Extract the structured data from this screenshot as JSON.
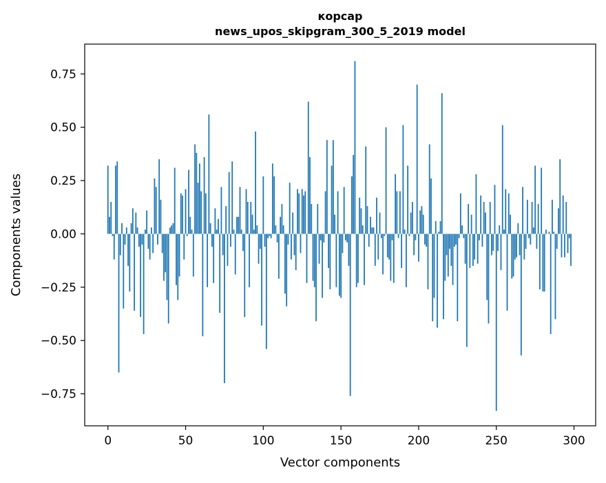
{
  "chart_data": {
    "type": "bar",
    "title_line1": "корсар",
    "title_line2": "news_upos_skipgram_300_5_2019 model",
    "xlabel": "Vector components",
    "ylabel": "Components values",
    "xlim": [
      -14.95,
      313.95
    ],
    "ylim": [
      -0.9,
      0.89
    ],
    "xticks": [
      0,
      50,
      100,
      150,
      200,
      250,
      300
    ],
    "xtick_labels": [
      "0",
      "50",
      "100",
      "150",
      "200",
      "250",
      "300"
    ],
    "yticks": [
      0.75,
      0.5,
      0.25,
      0.0,
      -0.25,
      -0.5,
      -0.75
    ],
    "ytick_labels": [
      "0.75",
      "0.50",
      "0.25",
      "0.00",
      "−0.25",
      "−0.50",
      "−0.75"
    ],
    "bar_color": "#1f77b4",
    "values": [
      0.32,
      0.08,
      0.15,
      -0.01,
      -0.12,
      0.32,
      0.34,
      -0.65,
      -0.1,
      0.05,
      -0.35,
      -0.05,
      0.03,
      -0.15,
      -0.27,
      0.05,
      0.12,
      -0.36,
      0.1,
      0.03,
      -0.06,
      -0.39,
      -0.05,
      -0.47,
      0.02,
      0.11,
      -0.07,
      -0.12,
      0.03,
      -0.09,
      0.26,
      0.22,
      -0.05,
      0.35,
      0.16,
      -0.09,
      -0.22,
      -0.18,
      -0.31,
      -0.42,
      0.03,
      0.04,
      0.05,
      0.31,
      -0.24,
      -0.31,
      -0.2,
      0.19,
      0.18,
      -0.12,
      0.21,
      -0.01,
      0.3,
      0.08,
      0.02,
      -0.2,
      0.42,
      0.38,
      0.24,
      0.33,
      0.2,
      -0.48,
      0.36,
      0.19,
      -0.25,
      0.56,
      0.05,
      -0.06,
      -0.23,
      0.12,
      0.02,
      0.07,
      -0.37,
      0.22,
      -0.1,
      -0.7,
      0.13,
      -0.15,
      0.29,
      -0.06,
      0.34,
      0.02,
      -0.19,
      0.08,
      0.08,
      0.22,
      0.02,
      -0.08,
      -0.39,
      0.21,
      0.15,
      -0.25,
      0.15,
      0.09,
      0.02,
      0.48,
      0.04,
      -0.14,
      -0.07,
      -0.43,
      0.27,
      -0.06,
      -0.54,
      -0.02,
      -0.01,
      -0.02,
      0.33,
      0.27,
      0.04,
      -0.04,
      -0.21,
      0.08,
      0.14,
      0.04,
      -0.28,
      -0.34,
      -0.05,
      0.24,
      -0.12,
      0.1,
      -0.1,
      -0.17,
      0.21,
      0.19,
      -0.09,
      0.21,
      0.18,
      0.2,
      -0.23,
      0.62,
      0.36,
      0.14,
      -0.22,
      -0.25,
      -0.41,
      0.14,
      -0.14,
      -0.03,
      -0.3,
      -0.04,
      0.2,
      0.44,
      -0.16,
      -0.26,
      0.32,
      0.44,
      0.09,
      -0.25,
      0.2,
      -0.29,
      -0.3,
      -0.09,
      0.22,
      -0.03,
      -0.04,
      -0.15,
      -0.76,
      0.27,
      0.37,
      0.81,
      -0.25,
      -0.23,
      0.17,
      0.12,
      0.04,
      -0.24,
      0.41,
      0.13,
      -0.06,
      0.08,
      0.03,
      0.03,
      -0.15,
      0.17,
      -0.12,
      0.1,
      -0.02,
      -0.19,
      -0.01,
      0.5,
      -0.11,
      -0.12,
      -0.22,
      -0.03,
      -0.23,
      0.28,
      0.2,
      -0.02,
      0.2,
      -0.16,
      0.51,
      0.02,
      -0.25,
      0.32,
      -0.01,
      0.1,
      0.15,
      -0.1,
      -0.03,
      0.7,
      -0.13,
      0.11,
      0.13,
      0.09,
      -0.05,
      -0.06,
      -0.26,
      0.42,
      0.26,
      -0.41,
      -0.3,
      0.06,
      -0.44,
      0.01,
      0.06,
      0.66,
      -0.4,
      -0.22,
      -0.1,
      -0.2,
      -0.07,
      -0.15,
      -0.24,
      -0.06,
      -0.05,
      -0.41,
      -0.02,
      0.19,
      0.04,
      -0.02,
      -0.14,
      -0.53,
      0.14,
      -0.16,
      0.09,
      -0.15,
      -0.12,
      0.28,
      -0.14,
      -0.03,
      0.18,
      -0.06,
      0.15,
      0.1,
      -0.31,
      -0.42,
      0.15,
      -0.1,
      -0.08,
      0.23,
      -0.83,
      -0.08,
      0.04,
      -0.17,
      0.51,
      0.02,
      0.21,
      -0.36,
      0.19,
      0.09,
      -0.21,
      -0.2,
      -0.12,
      -0.11,
      0.05,
      -0.1,
      -0.57,
      0.22,
      -0.12,
      -0.07,
      0.16,
      -0.02,
      -0.05,
      0.15,
      0.03,
      0.32,
      -0.07,
      0.14,
      -0.26,
      0.31,
      -0.27,
      -0.27,
      0.02,
      0.0,
      0.01,
      -0.47,
      0.16,
      0.01,
      -0.4,
      -0.07,
      0.12,
      0.35,
      -0.11,
      0.18,
      -0.11,
      0.15,
      -0.09,
      -0.02,
      -0.15
    ]
  }
}
